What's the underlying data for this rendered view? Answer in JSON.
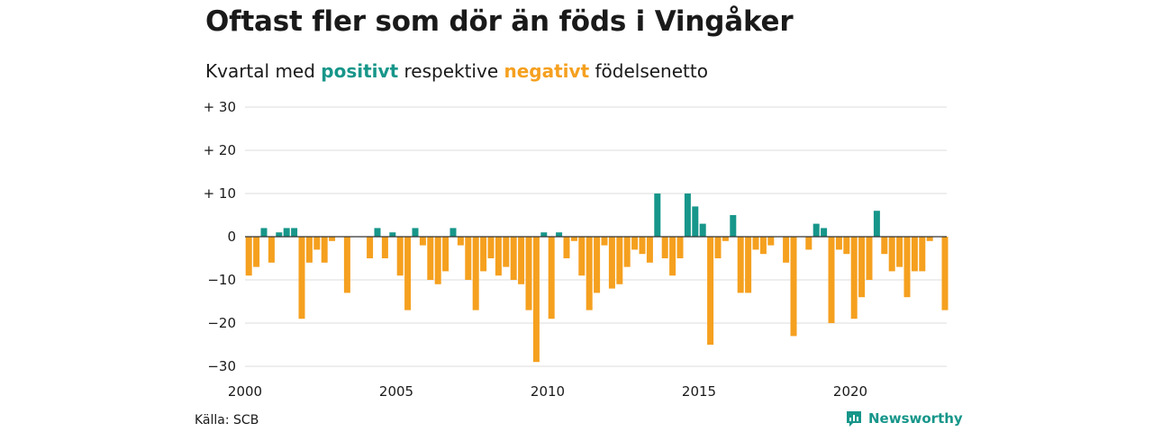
{
  "title": "Oftast fler som dör än föds i Vingåker",
  "subtitle": {
    "prefix": "Kvartal med",
    "positive": "positivt",
    "middle": "respektive",
    "negative": "negativt",
    "suffix": "födelsenetto"
  },
  "source": "Källa: SCB",
  "brand": {
    "name": "Newsworthy",
    "icon": "newsworthy-logo-icon"
  },
  "colors": {
    "positive": "#17968a",
    "negative": "#f5a01f",
    "grid": "#dddddd",
    "zero": "#333333"
  },
  "chart_data": {
    "type": "bar",
    "title": "Oftast fler som dör än föds i Vingåker",
    "subtitle": "Kvartal med positivt respektive negativt födelsenetto",
    "xlabel": "",
    "ylabel": "",
    "ylim": [
      -30,
      30
    ],
    "y_ticks": [
      {
        "value": 30,
        "label": "+ 30"
      },
      {
        "value": 20,
        "label": "+ 20"
      },
      {
        "value": 10,
        "label": "+ 10"
      },
      {
        "value": 0,
        "label": "0"
      },
      {
        "value": -10,
        "label": "−10"
      },
      {
        "value": -20,
        "label": "−20"
      },
      {
        "value": -30,
        "label": "−30"
      }
    ],
    "x_ticks": [
      "2000",
      "2005",
      "2010",
      "2015",
      "2020"
    ],
    "x_start_year": 2000,
    "grid": true,
    "legend": "none",
    "categories": [
      "2000 Q1",
      "2000 Q2",
      "2000 Q3",
      "2000 Q4",
      "2001 Q1",
      "2001 Q2",
      "2001 Q3",
      "2001 Q4",
      "2002 Q1",
      "2002 Q2",
      "2002 Q3",
      "2002 Q4",
      "2003 Q1",
      "2003 Q2",
      "2003 Q3",
      "2003 Q4",
      "2004 Q1",
      "2004 Q2",
      "2004 Q3",
      "2004 Q4",
      "2005 Q1",
      "2005 Q2",
      "2005 Q3",
      "2005 Q4",
      "2006 Q1",
      "2006 Q2",
      "2006 Q3",
      "2006 Q4",
      "2007 Q1",
      "2007 Q2",
      "2007 Q3",
      "2007 Q4",
      "2008 Q1",
      "2008 Q2",
      "2008 Q3",
      "2008 Q4",
      "2009 Q1",
      "2009 Q2",
      "2009 Q3",
      "2009 Q4",
      "2010 Q1",
      "2010 Q2",
      "2010 Q3",
      "2010 Q4",
      "2011 Q1",
      "2011 Q2",
      "2011 Q3",
      "2011 Q4",
      "2012 Q1",
      "2012 Q2",
      "2012 Q3",
      "2012 Q4",
      "2013 Q1",
      "2013 Q2",
      "2013 Q3",
      "2013 Q4",
      "2014 Q1",
      "2014 Q2",
      "2014 Q3",
      "2014 Q4",
      "2015 Q1",
      "2015 Q2",
      "2015 Q3",
      "2015 Q4",
      "2016 Q1",
      "2016 Q2",
      "2016 Q3",
      "2016 Q4",
      "2017 Q1",
      "2017 Q2",
      "2017 Q3",
      "2017 Q4",
      "2018 Q1",
      "2018 Q2",
      "2018 Q3",
      "2018 Q4",
      "2019 Q1",
      "2019 Q2",
      "2019 Q3",
      "2019 Q4",
      "2020 Q1",
      "2020 Q2",
      "2020 Q3",
      "2020 Q4",
      "2021 Q1",
      "2021 Q2",
      "2021 Q3",
      "2021 Q4",
      "2022 Q1",
      "2022 Q2",
      "2022 Q3",
      "2022 Q4",
      "2023 Q1"
    ],
    "values": [
      -9,
      -7,
      2,
      -6,
      1,
      2,
      2,
      -19,
      -6,
      -3,
      -6,
      -1,
      0,
      -13,
      0,
      0,
      -5,
      2,
      -5,
      1,
      -9,
      -17,
      2,
      -2,
      -10,
      -11,
      -8,
      2,
      -2,
      -10,
      -17,
      -8,
      -5,
      -9,
      -7,
      -10,
      -11,
      -17,
      -29,
      1,
      -19,
      1,
      -5,
      -1,
      -9,
      -17,
      -13,
      -2,
      -12,
      -11,
      -7,
      -3,
      -4,
      -6,
      10,
      -5,
      -9,
      -5,
      10,
      7,
      3,
      -25,
      -5,
      -1,
      5,
      -13,
      -13,
      -3,
      -4,
      -2,
      0,
      -6,
      -23,
      0,
      -3,
      3,
      2,
      -20,
      -3,
      -4,
      -19,
      -14,
      -10,
      6,
      -4,
      -8,
      -7,
      -14,
      -8,
      -8,
      -1,
      0,
      -17
    ]
  }
}
